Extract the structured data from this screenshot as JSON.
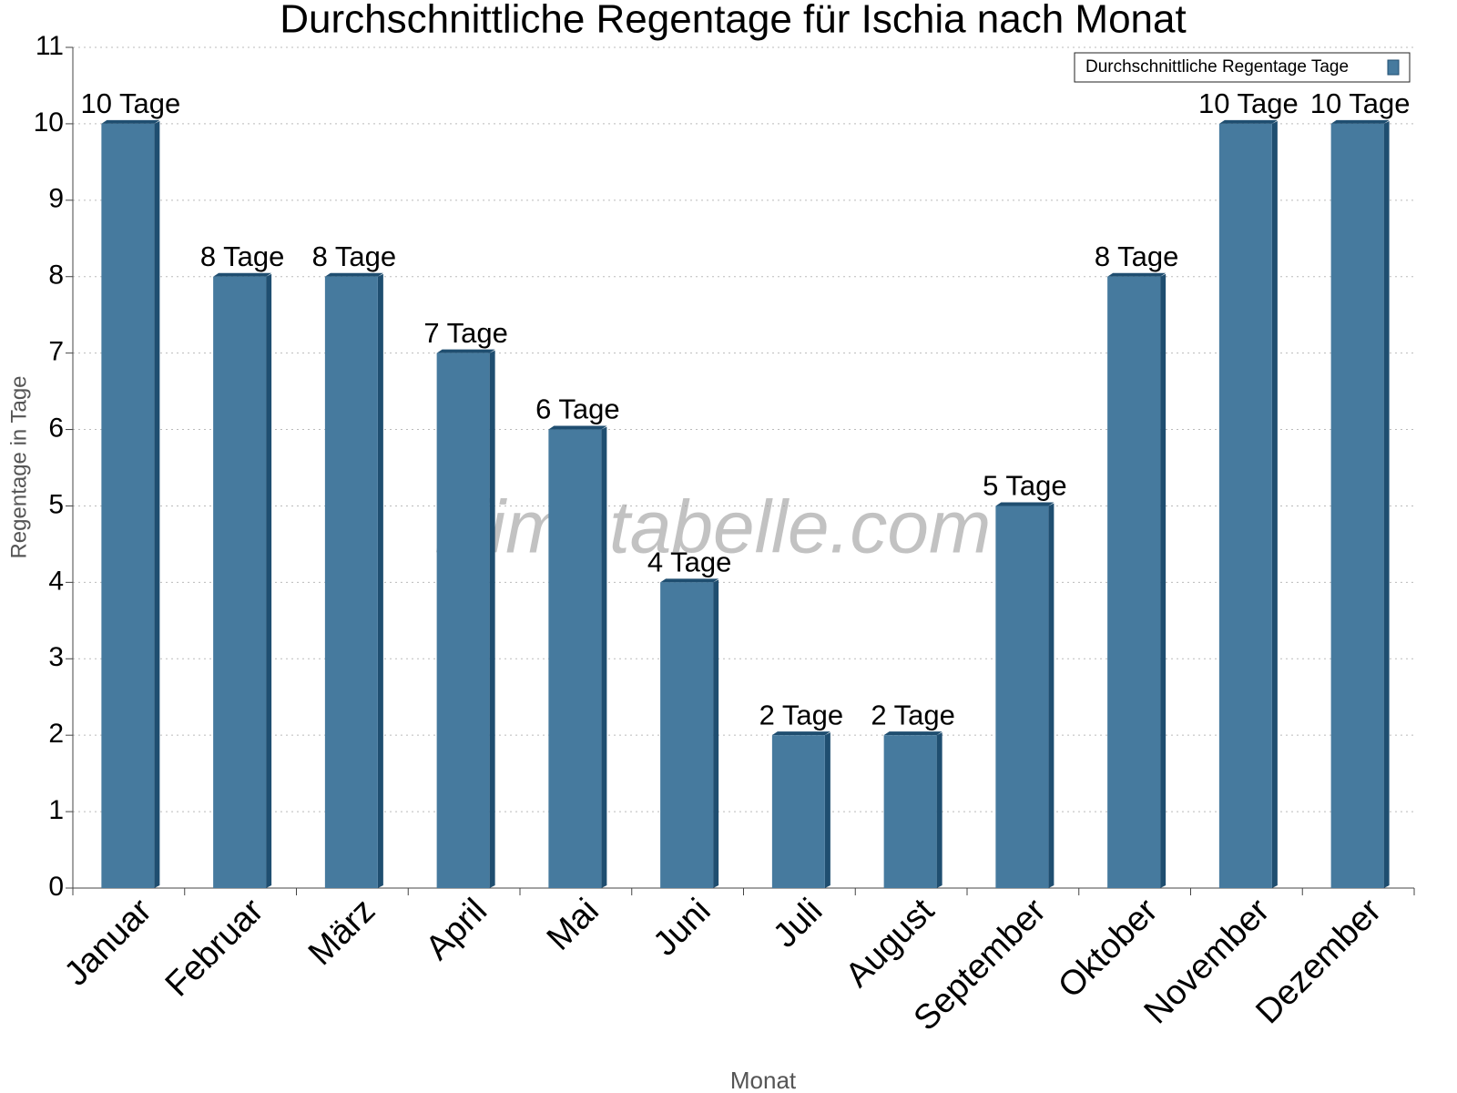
{
  "chart_data": {
    "type": "bar",
    "title": "Durchschnittliche Regentage für Ischia nach Monat",
    "x_label": "Monat",
    "y_label": "Regentage in Tage",
    "watermark": "klimatabelle.com",
    "categories": [
      "Januar",
      "Februar",
      "März",
      "April",
      "Mai",
      "Juni",
      "Juli",
      "August",
      "September",
      "Oktober",
      "November",
      "Dezember"
    ],
    "series": [
      {
        "name": "Durchschnittliche Regentage Tage",
        "color": "#467a9e",
        "values": [
          10,
          8,
          8,
          7,
          6,
          4,
          2,
          2,
          5,
          8,
          10,
          10
        ],
        "value_labels": [
          "10 Tage",
          "8 Tage",
          "8 Tage",
          "7 Tage",
          "6 Tage",
          "4 Tage",
          "2 Tage",
          "2 Tage",
          "5 Tage",
          "8 Tage",
          "10 Tage",
          "10 Tage"
        ]
      }
    ],
    "ylim": [
      0,
      11
    ],
    "yticks": [
      0,
      1,
      2,
      3,
      4,
      5,
      6,
      7,
      8,
      9,
      10,
      11
    ],
    "grid": true,
    "legend": "top-right"
  }
}
